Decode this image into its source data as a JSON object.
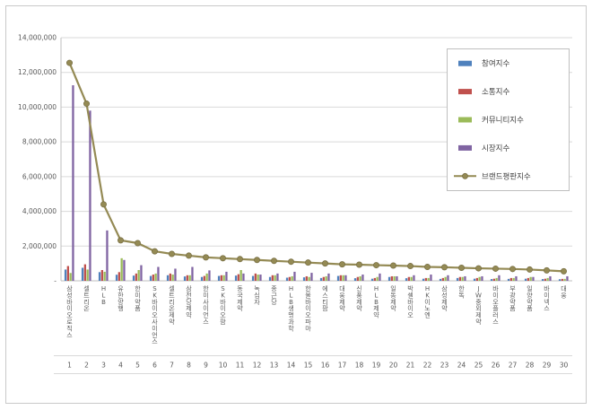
{
  "chart_data": {
    "type": "bar",
    "title": "",
    "categories": [
      "삼성바이오로직스",
      "셀트리온",
      "HLB",
      "유한양행",
      "한미약품",
      "SK바이오사이언스",
      "셀트리온제약",
      "삼천당제약",
      "한미사이언스",
      "SK바이오팜",
      "동국제약",
      "녹십자",
      "종근당",
      "HLB생명과학",
      "한올바이오파마",
      "에스티팜",
      "대웅제약",
      "신풍제약",
      "HLB제약",
      "일동제약",
      "박셀바이오",
      "HK이노엔",
      "삼성제약",
      "한독",
      "JW중외제약",
      "바이오플러스",
      "부광약품",
      "일양약품",
      "바이넥스",
      "대웅"
    ],
    "category_numbers": [
      "1",
      "2",
      "3",
      "4",
      "5",
      "6",
      "7",
      "8",
      "9",
      "10",
      "11",
      "12",
      "13",
      "14",
      "15",
      "16",
      "17",
      "18",
      "19",
      "20",
      "21",
      "22",
      "23",
      "24",
      "25",
      "26",
      "27",
      "28",
      "29",
      "30"
    ],
    "y_tick_labels": [
      "14,000,000",
      "12,000,000",
      "10,000,000",
      "8,000,000",
      "6,000,000",
      "4,000,000",
      "2,000,000",
      "-"
    ],
    "y_tick_values": [
      14000000,
      12000000,
      10000000,
      8000000,
      6000000,
      4000000,
      2000000,
      0
    ],
    "ylim": [
      0,
      14000000
    ],
    "grid": true,
    "legend_position": "right-top",
    "series": [
      {
        "name": "참여지수",
        "type": "bar",
        "color": "#4F81BD",
        "values": [
          650000,
          750000,
          500000,
          350000,
          300000,
          280000,
          320000,
          250000,
          220000,
          280000,
          300000,
          280000,
          220000,
          180000,
          200000,
          160000,
          280000,
          150000,
          120000,
          220000,
          150000,
          120000,
          110000,
          160000,
          120000,
          100000,
          110000,
          120000,
          100000,
          90000
        ]
      },
      {
        "name": "소통지수",
        "type": "bar",
        "color": "#C0504D",
        "values": [
          850000,
          950000,
          620000,
          500000,
          420000,
          360000,
          420000,
          320000,
          280000,
          320000,
          380000,
          420000,
          320000,
          220000,
          260000,
          220000,
          320000,
          220000,
          160000,
          260000,
          220000,
          160000,
          160000,
          220000,
          160000,
          120000,
          160000,
          160000,
          120000,
          110000
        ]
      },
      {
        "name": "커뮤니티지수",
        "type": "bar",
        "color": "#9BBB59",
        "values": [
          450000,
          650000,
          520000,
          1300000,
          620000,
          420000,
          360000,
          320000,
          420000,
          320000,
          620000,
          360000,
          320000,
          260000,
          220000,
          260000,
          320000,
          260000,
          220000,
          260000,
          220000,
          160000,
          220000,
          220000,
          220000,
          160000,
          160000,
          220000,
          160000,
          110000
        ]
      },
      {
        "name": "시장지수",
        "type": "bar",
        "color": "#8064A2",
        "values": [
          11260000,
          9800000,
          2900000,
          1200000,
          900000,
          800000,
          700000,
          800000,
          600000,
          520000,
          420000,
          360000,
          420000,
          520000,
          460000,
          420000,
          320000,
          360000,
          420000,
          260000,
          320000,
          360000,
          320000,
          260000,
          260000,
          320000,
          260000,
          220000,
          260000,
          260000
        ]
      },
      {
        "name": "브랜드평판지수",
        "type": "line",
        "color": "#948A54",
        "values": [
          12550000,
          10200000,
          4400000,
          2330000,
          2170000,
          1700000,
          1550000,
          1450000,
          1350000,
          1300000,
          1250000,
          1200000,
          1150000,
          1100000,
          1050000,
          1000000,
          950000,
          930000,
          900000,
          880000,
          850000,
          800000,
          780000,
          750000,
          720000,
          700000,
          680000,
          650000,
          600000,
          550000
        ]
      }
    ],
    "colors": {
      "grid": "#d9d9d9",
      "axis": "#bfbfbf",
      "tick_text": "#595959",
      "border": "#c9c9c9",
      "legend_text": "#404040",
      "background": "#ffffff"
    }
  }
}
